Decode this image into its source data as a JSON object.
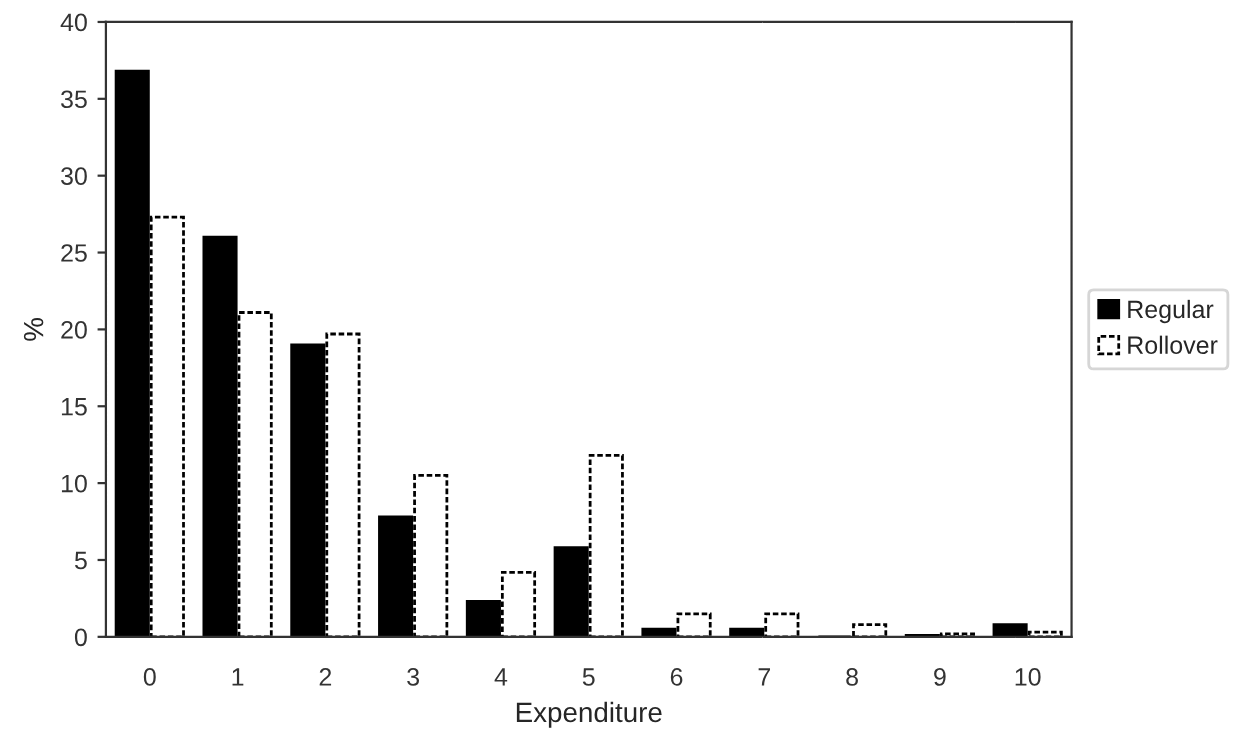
{
  "chart_data": {
    "type": "bar",
    "xlabel": "Expenditure",
    "ylabel": "%",
    "categories": [
      "0",
      "1",
      "2",
      "3",
      "4",
      "5",
      "6",
      "7",
      "8",
      "9",
      "10"
    ],
    "series": [
      {
        "name": "Regular",
        "color": "#000000",
        "values": [
          36.8,
          26.0,
          19.0,
          7.8,
          2.3,
          5.8,
          0.5,
          0.5,
          0.0,
          0.1,
          0.8
        ]
      },
      {
        "name": "Rollover",
        "color": "#ffffff",
        "values": [
          27.3,
          21.1,
          19.7,
          10.5,
          4.2,
          11.8,
          1.5,
          1.5,
          0.8,
          0.2,
          0.3
        ]
      }
    ],
    "ylim": [
      0,
      40
    ],
    "yticks": [
      0,
      5,
      10,
      15,
      20,
      25,
      30,
      35,
      40
    ],
    "grid": false,
    "legend": "right"
  }
}
